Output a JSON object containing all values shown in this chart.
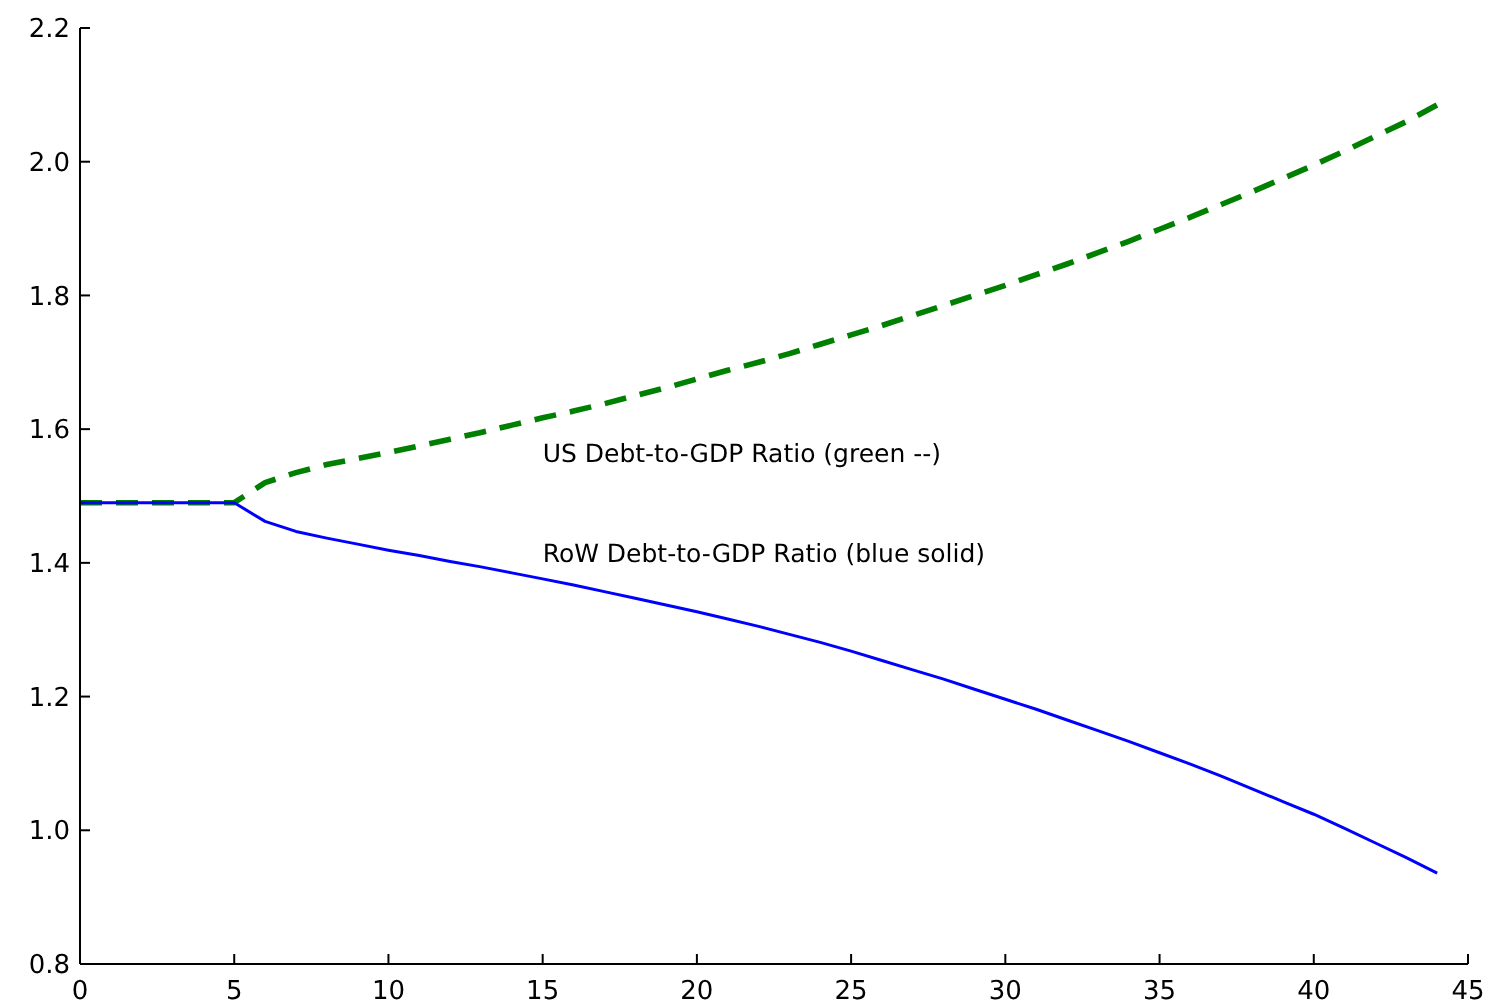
{
  "chart_data": {
    "type": "line",
    "x": [
      0,
      1,
      2,
      3,
      4,
      5,
      6,
      7,
      8,
      9,
      10,
      11,
      12,
      13,
      14,
      15,
      16,
      17,
      18,
      19,
      20,
      21,
      22,
      23,
      24,
      25,
      26,
      27,
      28,
      29,
      30,
      31,
      32,
      33,
      34,
      35,
      36,
      37,
      38,
      39,
      40,
      41,
      42,
      43,
      44
    ],
    "series": [
      {
        "color": "#008000",
        "line_style": "dashed",
        "values": [
          1.49,
          1.49,
          1.49,
          1.49,
          1.49,
          1.49,
          1.52,
          1.535,
          1.547,
          1.556,
          1.565,
          1.575,
          1.585,
          1.595,
          1.606,
          1.617,
          1.627,
          1.638,
          1.65,
          1.662,
          1.675,
          1.688,
          1.7,
          1.713,
          1.727,
          1.741,
          1.755,
          1.77,
          1.785,
          1.8,
          1.815,
          1.831,
          1.847,
          1.864,
          1.881,
          1.899,
          1.917,
          1.936,
          1.955,
          1.975,
          1.995,
          2.016,
          2.038,
          2.06,
          2.085
        ]
      },
      {
        "color": "#0000ff",
        "line_style": "solid",
        "values": [
          1.49,
          1.49,
          1.49,
          1.49,
          1.49,
          1.49,
          1.462,
          1.447,
          1.437,
          1.428,
          1.419,
          1.411,
          1.402,
          1.394,
          1.385,
          1.376,
          1.367,
          1.357,
          1.347,
          1.337,
          1.327,
          1.316,
          1.305,
          1.293,
          1.281,
          1.268,
          1.254,
          1.24,
          1.226,
          1.211,
          1.196,
          1.181,
          1.165,
          1.149,
          1.133,
          1.116,
          1.099,
          1.081,
          1.062,
          1.043,
          1.024,
          1.003,
          0.981,
          0.959,
          0.936
        ]
      }
    ],
    "xlim": [
      0,
      45
    ],
    "ylim": [
      0.8,
      2.2
    ],
    "xticks": [
      0,
      5,
      10,
      15,
      20,
      25,
      30,
      35,
      40,
      45
    ],
    "yticks": [
      0.8,
      {
        "value": 1,
        "label": "1.0"
      },
      1.2,
      1.4,
      1.6,
      1.8,
      {
        "value": 2,
        "label": "2.0"
      },
      2.2
    ],
    "annotations": [
      "US Debt-to-GDP Ratio (green --)",
      "RoW Debt-to-GDP Ratio (blue solid)"
    ]
  }
}
